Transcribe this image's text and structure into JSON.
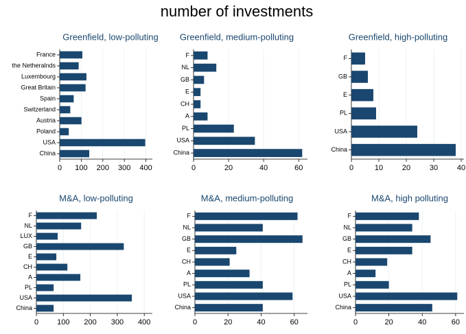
{
  "title": "number of investments",
  "chart_data": [
    {
      "type": "bar",
      "title": "Greenfield, low-polluting",
      "categories": [
        "France",
        "the Netheralnds",
        "Luxembourg",
        "Great Britain",
        "Spain",
        "Switzerland",
        "Austria",
        "Poland",
        "USA",
        "China"
      ],
      "values": [
        105,
        88,
        124,
        120,
        65,
        49,
        101,
        42,
        397,
        137
      ],
      "color": "#1a476f",
      "xlim": [
        0,
        430
      ],
      "xticks": [
        0,
        100,
        200,
        300,
        400
      ],
      "grid": true
    },
    {
      "type": "bar",
      "title": "Greenfield, medium-polluting",
      "categories": [
        "F",
        "NL",
        "GB",
        "E",
        "CH",
        "A",
        "PL",
        "USA",
        "China"
      ],
      "values": [
        8,
        13,
        6,
        4,
        4,
        8,
        23,
        35,
        62
      ],
      "color": "#1a476f",
      "xlim": [
        0,
        65
      ],
      "xticks": [
        0,
        20,
        40,
        60
      ],
      "grid": true
    },
    {
      "type": "bar",
      "title": "Greenfield, high-polluting",
      "categories": [
        "F",
        "GB",
        "E",
        "PL",
        "USA",
        "China"
      ],
      "values": [
        5,
        6,
        8,
        9,
        24,
        38
      ],
      "color": "#1a476f",
      "xlim": [
        0,
        41
      ],
      "xticks": [
        0,
        10,
        20,
        30,
        40
      ],
      "grid": true
    },
    {
      "type": "bar",
      "title": "M&A, low-polluting",
      "categories": [
        "F",
        "NL",
        "LUX",
        "GB",
        "E",
        "CH",
        "A",
        "PL",
        "USA",
        "China"
      ],
      "values": [
        224,
        166,
        79,
        324,
        74,
        115,
        163,
        64,
        354,
        64
      ],
      "color": "#1a476f",
      "xlim": [
        0,
        430
      ],
      "xticks": [
        0,
        100,
        200,
        300,
        400
      ],
      "grid": true
    },
    {
      "type": "bar",
      "title": "M&A, medium-polluting",
      "categories": [
        "F",
        "NL",
        "GB",
        "E",
        "CH",
        "A",
        "PL",
        "USA",
        "China"
      ],
      "values": [
        62,
        41,
        65,
        25,
        21,
        33,
        41,
        59,
        41
      ],
      "color": "#1a476f",
      "xlim": [
        0,
        68
      ],
      "xticks": [
        0,
        20,
        40,
        60
      ],
      "grid": true
    },
    {
      "type": "bar",
      "title": "M&A, high polluting",
      "categories": [
        "F",
        "NL",
        "GB",
        "E",
        "CH",
        "A",
        "PL",
        "USA",
        "China"
      ],
      "values": [
        38,
        34,
        45,
        34,
        19,
        12,
        20,
        61,
        46
      ],
      "color": "#1a476f",
      "xlim": [
        0,
        65
      ],
      "xticks": [
        0,
        20,
        40,
        60
      ],
      "grid": true
    }
  ]
}
